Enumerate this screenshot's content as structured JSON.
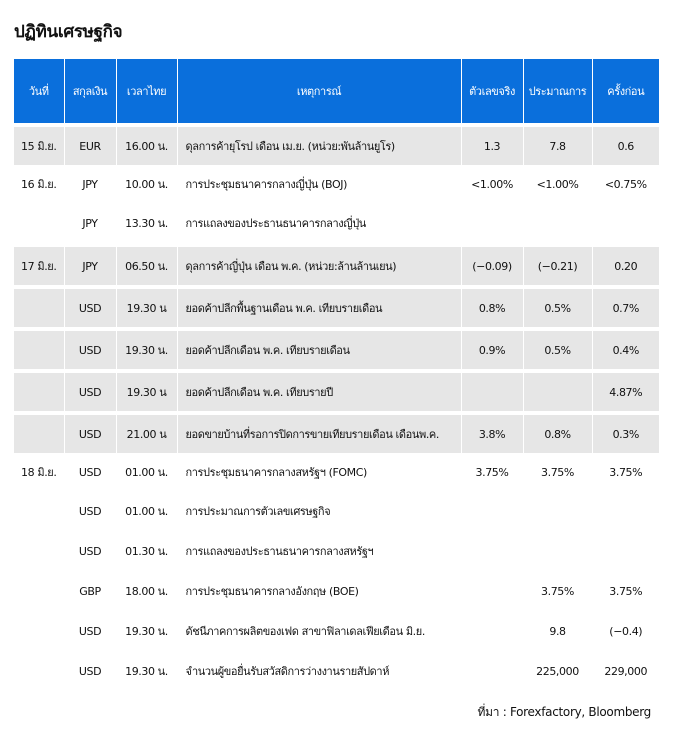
{
  "title": "ปฏิทินเศรษฐกิจ",
  "headers": {
    "date": "วันที่",
    "currency": "สกุลเงิน",
    "time": "เวลาไทย",
    "event": "เหตุการณ์",
    "actual": "ตัวเลขจริง",
    "forecast": "ประมาณการ",
    "previous": "ครั้งก่อน"
  },
  "rows": [
    {
      "date": "15 มิ.ย.",
      "currency": "EUR",
      "time": "16.00 น.",
      "event": "ดุลการค้ายุโรป เดือน เม.ย. (หน่วย:พันล้านยูโร)",
      "actual": "1.3",
      "forecast": "7.8",
      "previous": "0.6"
    },
    {
      "date": "16 มิ.ย.",
      "currency": "JPY",
      "time": "10.00 น.",
      "event": "การประชุมธนาคารกลางญี่ปุ่น (BOJ)",
      "actual": "<1.00%",
      "forecast": "<1.00%",
      "previous": "<0.75%"
    },
    {
      "date": "",
      "currency": "JPY",
      "time": "13.30 น.",
      "event": "การแถลงของประธานธนาคารกลางญี่ปุ่น",
      "actual": "",
      "forecast": "",
      "previous": ""
    },
    {
      "date": "17 มิ.ย.",
      "currency": "JPY",
      "time": "06.50 น.",
      "event": "ดุลการค้าญี่ปุ่น เดือน พ.ค. (หน่วย:ล้านล้านเยน)",
      "actual": "(−0.09)",
      "forecast": "(−0.21)",
      "previous": "0.20"
    },
    {
      "date": "",
      "currency": "USD",
      "time": "19.30 น",
      "event": "ยอดค้าปลีกพื้นฐานเดือน พ.ค. เทียบรายเดือน",
      "actual": "0.8%",
      "forecast": "0.5%",
      "previous": "0.7%"
    },
    {
      "date": "",
      "currency": "USD",
      "time": "19.30 น.",
      "event": "ยอดค้าปลีกเดือน พ.ค. เทียบรายเดือน",
      "actual": "0.9%",
      "forecast": "0.5%",
      "previous": "0.4%"
    },
    {
      "date": "",
      "currency": "USD",
      "time": "19.30 น",
      "event": "ยอดค้าปลีกเดือน พ.ค. เทียบรายปี",
      "actual": "",
      "forecast": "",
      "previous": "4.87%"
    },
    {
      "date": "",
      "currency": "USD",
      "time": "21.00 น",
      "event": "ยอดขายบ้านที่รอการปิดการขายเทียบรายเดือน เดือนพ.ค.",
      "actual": "3.8%",
      "forecast": "0.8%",
      "previous": "0.3%"
    },
    {
      "date": "18 มิ.ย.",
      "currency": "USD",
      "time": "01.00 น.",
      "event": "การประชุมธนาคารกลางสหรัฐฯ (FOMC)",
      "actual": "3.75%",
      "forecast": "3.75%",
      "previous": "3.75%"
    },
    {
      "date": "",
      "currency": "USD",
      "time": "01.00 น.",
      "event": "การประมาณการตัวเลขเศรษฐกิจ",
      "actual": "",
      "forecast": "",
      "previous": ""
    },
    {
      "date": "",
      "currency": "USD",
      "time": "01.30 น.",
      "event": "การแถลงของประธานธนาคารกลางสหรัฐฯ",
      "actual": "",
      "forecast": "",
      "previous": ""
    },
    {
      "date": "",
      "currency": "GBP",
      "time": "18.00 น.",
      "event": "การประชุมธนาคารกลางอังกฤษ (BOE)",
      "actual": "",
      "forecast": "3.75%",
      "previous": "3.75%"
    },
    {
      "date": "",
      "currency": "USD",
      "time": "19.30 น.",
      "event": "ดัชนีภาคการผลิตของเฟด สาขาฟิลาเดลเฟียเดือน มิ.ย.",
      "actual": "",
      "forecast": "9.8",
      "previous": "(−0.4)"
    },
    {
      "date": "",
      "currency": "USD",
      "time": "19.30 น.",
      "event": "จำนวนผู้ขอยื่นรับสวัสดิการว่างงานรายสัปดาห์",
      "actual": "",
      "forecast": "225,000",
      "previous": "229,000"
    }
  ],
  "source": "ที่มา : Forexfactory, Bloomberg"
}
